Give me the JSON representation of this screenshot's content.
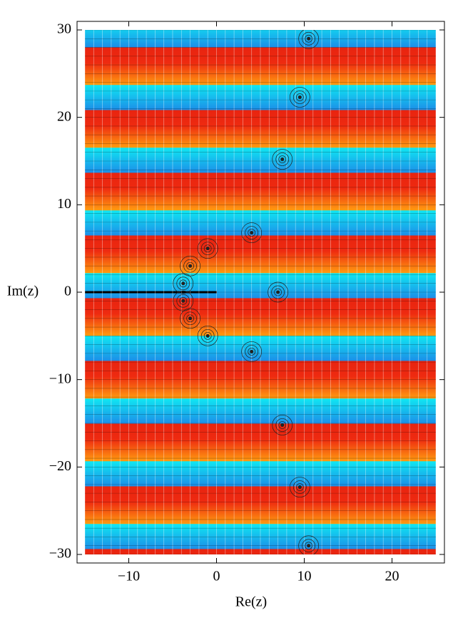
{
  "chart_data": {
    "type": "domain-coloring",
    "x_label": "Re(z)",
    "y_label": "Im(z)",
    "xlim": [
      -15,
      25
    ],
    "ylim": [
      -30,
      30
    ],
    "xticks": [
      {
        "value": -10,
        "label": "−10"
      },
      0,
      10,
      20
    ],
    "yticks": [
      {
        "value": -30,
        "label": "−30"
      },
      {
        "value": -20,
        "label": "−20"
      },
      {
        "value": -10,
        "label": "−10"
      },
      0,
      10,
      20,
      30
    ],
    "series": [
      {
        "color": "#222222",
        "x": [
          10.5,
          9.5,
          7.5,
          4,
          -1,
          -3,
          -3.8,
          7,
          -3.8,
          -3,
          -1,
          4,
          7.5,
          9.5,
          10.5
        ],
        "values": [
          29,
          22.3,
          15.2,
          6.8,
          5,
          3,
          1,
          0,
          -1,
          -3,
          -5,
          -6.8,
          -15.2,
          -22.3,
          -29
        ]
      }
    ]
  }
}
